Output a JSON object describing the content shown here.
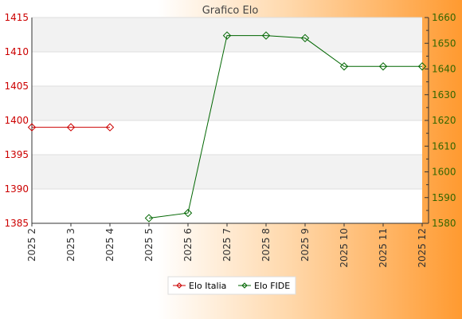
{
  "chart_data": {
    "type": "line",
    "title": "Grafico Elo",
    "categories": [
      "2025 2",
      "2025 3",
      "2025 4",
      "2025 5",
      "2025 6",
      "2025 7",
      "2025 8",
      "2025 9",
      "2025 10",
      "2025 11",
      "2025 12"
    ],
    "y_left": {
      "min": 1385,
      "max": 1415,
      "ticks": [
        1385,
        1390,
        1395,
        1400,
        1405,
        1410,
        1415
      ]
    },
    "y_right": {
      "min": 1580,
      "max": 1660,
      "ticks": [
        1580,
        1590,
        1600,
        1610,
        1620,
        1630,
        1640,
        1650,
        1660
      ]
    },
    "grid": true,
    "legend_position": "bottom",
    "series": [
      {
        "name": "Elo Italia",
        "axis": "left",
        "color": "#cc0000",
        "values": [
          1399,
          1399,
          1399,
          null,
          null,
          null,
          null,
          null,
          null,
          null,
          null
        ]
      },
      {
        "name": "Elo FIDE",
        "axis": "right",
        "color": "#006600",
        "values": [
          null,
          null,
          null,
          1582,
          1584,
          1653,
          1653,
          1652,
          1641,
          1641,
          1641
        ]
      }
    ]
  }
}
